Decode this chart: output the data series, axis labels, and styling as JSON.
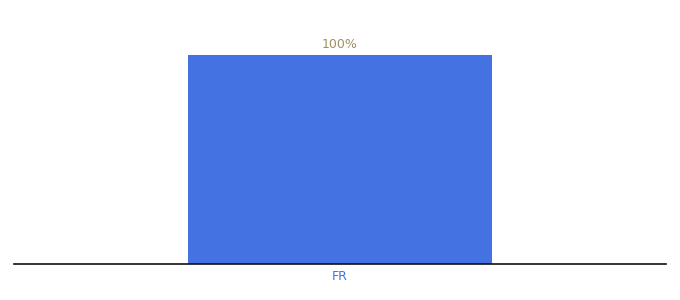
{
  "categories": [
    "FR"
  ],
  "values": [
    100
  ],
  "bar_color": "#4472E3",
  "label_color": "#a09060",
  "tick_color": "#4472E3",
  "label_text": "100%",
  "label_fontsize": 9,
  "tick_fontsize": 9,
  "bar_width": 0.7,
  "ylim": [
    0,
    115
  ],
  "xlim": [
    -0.75,
    0.75
  ],
  "background_color": "#ffffff",
  "spine_color": "#111111"
}
